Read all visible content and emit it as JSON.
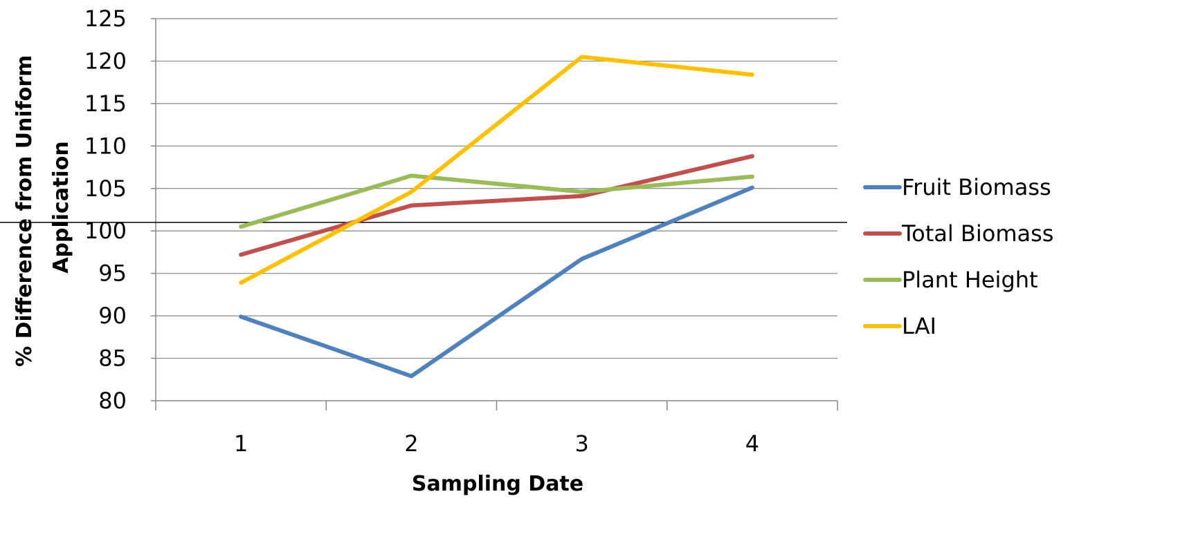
{
  "chart_data": {
    "type": "line",
    "title": "",
    "xlabel": "Sampling Date",
    "ylabel": "% Difference from Uniform Application",
    "ylabel_lines": [
      "% Difference from Uniform",
      "Application"
    ],
    "x": [
      1,
      2,
      3,
      4
    ],
    "categories": [
      "1",
      "2",
      "3",
      "4"
    ],
    "ylim": [
      80,
      125
    ],
    "yticks": [
      80,
      85,
      90,
      95,
      100,
      105,
      110,
      115,
      120,
      125
    ],
    "reference_line": 101,
    "grid": true,
    "legend_position": "right",
    "series": [
      {
        "name": "Fruit Biomass",
        "color": "#4F81BD",
        "values": [
          89.9,
          82.9,
          96.7,
          105.1
        ]
      },
      {
        "name": "Total Biomass",
        "color": "#C0504D",
        "values": [
          97.2,
          103.0,
          104.1,
          108.8
        ]
      },
      {
        "name": "Plant Height",
        "color": "#9BBB59",
        "values": [
          100.5,
          106.5,
          104.6,
          106.4
        ]
      },
      {
        "name": "LAI",
        "color": "#FFC000",
        "values": [
          93.9,
          104.6,
          120.5,
          118.4
        ]
      }
    ]
  }
}
